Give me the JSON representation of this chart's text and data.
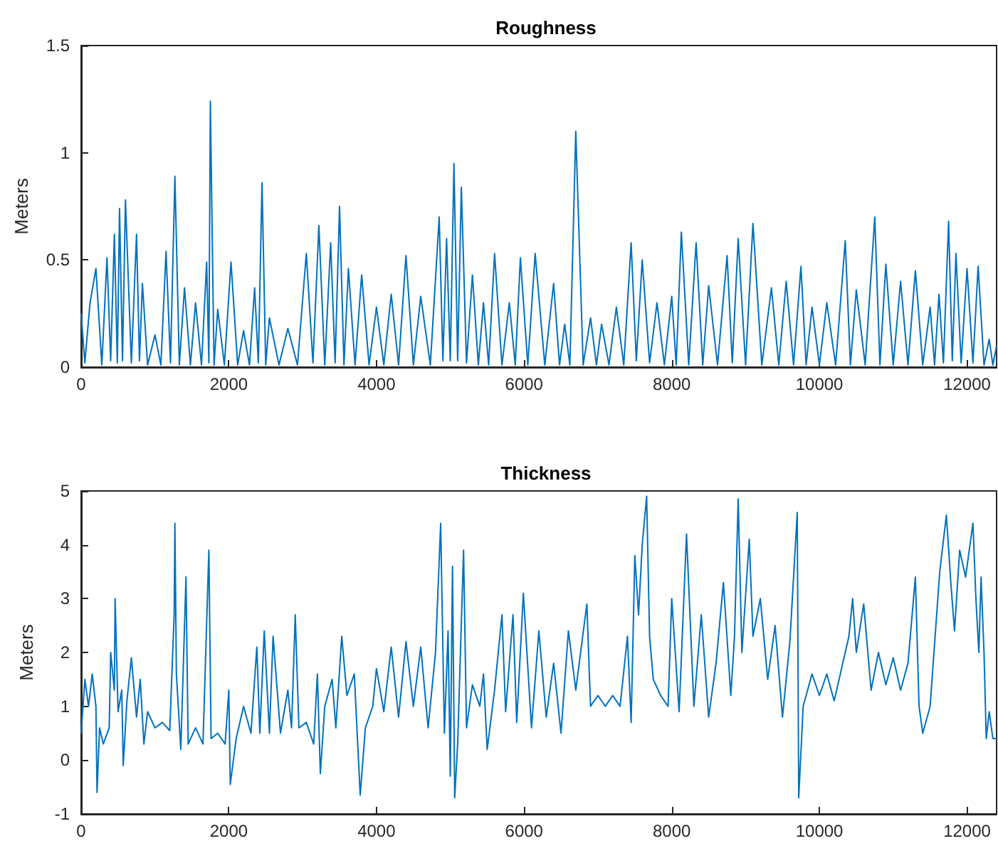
{
  "chart_data": [
    {
      "type": "line",
      "title": "Roughness",
      "ylabel": "Meters",
      "color": "#0072bd",
      "grid": false,
      "marker": "none",
      "line_style": "solid",
      "xlim": [
        0,
        12400
      ],
      "ylim": [
        0,
        1.5
      ],
      "xticks": [
        0,
        2000,
        4000,
        6000,
        8000,
        10000,
        12000
      ],
      "yticks": [
        0,
        0.5,
        1,
        1.5
      ],
      "x": [
        0,
        50,
        120,
        200,
        280,
        350,
        400,
        450,
        490,
        520,
        560,
        600,
        680,
        750,
        790,
        830,
        900,
        1000,
        1080,
        1150,
        1210,
        1270,
        1330,
        1400,
        1480,
        1550,
        1630,
        1700,
        1730,
        1750,
        1800,
        1850,
        1940,
        2030,
        2120,
        2200,
        2280,
        2350,
        2400,
        2450,
        2500,
        2550,
        2680,
        2800,
        2930,
        3050,
        3140,
        3220,
        3300,
        3380,
        3440,
        3500,
        3560,
        3620,
        3710,
        3800,
        3900,
        4000,
        4100,
        4200,
        4300,
        4400,
        4500,
        4600,
        4730,
        4850,
        4900,
        4950,
        5000,
        5050,
        5100,
        5150,
        5220,
        5300,
        5380,
        5450,
        5520,
        5600,
        5700,
        5800,
        5880,
        5950,
        6050,
        6150,
        6280,
        6400,
        6480,
        6550,
        6620,
        6700,
        6800,
        6900,
        6980,
        7050,
        7150,
        7250,
        7350,
        7450,
        7520,
        7600,
        7700,
        7800,
        7900,
        8000,
        8060,
        8130,
        8230,
        8330,
        8420,
        8500,
        8620,
        8750,
        8820,
        8900,
        9000,
        9100,
        9220,
        9350,
        9450,
        9550,
        9650,
        9750,
        9820,
        9900,
        10000,
        10100,
        10220,
        10350,
        10420,
        10500,
        10620,
        10750,
        10820,
        10900,
        11000,
        11100,
        11200,
        11300,
        11400,
        11500,
        11560,
        11620,
        11680,
        11750,
        11800,
        11850,
        11920,
        12000,
        12080,
        12150,
        12230,
        12300,
        12350,
        12400
      ],
      "values": [
        0.25,
        0.02,
        0.3,
        0.46,
        0.01,
        0.51,
        0.03,
        0.62,
        0.02,
        0.74,
        0.03,
        0.78,
        0.02,
        0.62,
        0.03,
        0.39,
        0.01,
        0.15,
        0.01,
        0.54,
        0.02,
        0.89,
        0.01,
        0.37,
        0.01,
        0.3,
        0.01,
        0.49,
        0.02,
        1.24,
        0.01,
        0.27,
        0.01,
        0.49,
        0.01,
        0.17,
        0.01,
        0.37,
        0.02,
        0.86,
        0.01,
        0.23,
        0.01,
        0.18,
        0.01,
        0.53,
        0.02,
        0.66,
        0.01,
        0.58,
        0.02,
        0.75,
        0.01,
        0.46,
        0.01,
        0.43,
        0.01,
        0.28,
        0.01,
        0.34,
        0.01,
        0.52,
        0.01,
        0.33,
        0.01,
        0.7,
        0.03,
        0.6,
        0.03,
        0.95,
        0.03,
        0.84,
        0.02,
        0.43,
        0.01,
        0.3,
        0.01,
        0.53,
        0.01,
        0.3,
        0.01,
        0.51,
        0.01,
        0.53,
        0.01,
        0.39,
        0.01,
        0.2,
        0.01,
        1.1,
        0.01,
        0.23,
        0.01,
        0.2,
        0.01,
        0.28,
        0.01,
        0.58,
        0.03,
        0.5,
        0.02,
        0.3,
        0.01,
        0.33,
        0.01,
        0.63,
        0.01,
        0.58,
        0.01,
        0.38,
        0.01,
        0.52,
        0.02,
        0.6,
        0.01,
        0.67,
        0.01,
        0.37,
        0.01,
        0.4,
        0.01,
        0.47,
        0.01,
        0.28,
        0.01,
        0.3,
        0.01,
        0.59,
        0.01,
        0.36,
        0.01,
        0.7,
        0.01,
        0.48,
        0.01,
        0.4,
        0.01,
        0.45,
        0.01,
        0.28,
        0.01,
        0.34,
        0.02,
        0.68,
        0.03,
        0.53,
        0.02,
        0.46,
        0.02,
        0.47,
        0.01,
        0.13,
        0.01,
        0.1
      ]
    },
    {
      "type": "line",
      "title": "Thickness",
      "ylabel": "Meters",
      "color": "#0072bd",
      "grid": false,
      "marker": "none",
      "line_style": "solid",
      "xlim": [
        0,
        12400
      ],
      "ylim": [
        -1,
        5
      ],
      "xticks": [
        0,
        2000,
        4000,
        6000,
        8000,
        10000,
        12000
      ],
      "yticks": [
        -1,
        0,
        1,
        2,
        3,
        4,
        5
      ],
      "x": [
        0,
        50,
        100,
        150,
        200,
        215,
        250,
        300,
        380,
        400,
        450,
        460,
        500,
        550,
        570,
        620,
        680,
        750,
        800,
        850,
        900,
        1000,
        1100,
        1200,
        1260,
        1270,
        1290,
        1350,
        1420,
        1450,
        1550,
        1650,
        1730,
        1760,
        1850,
        1950,
        2000,
        2020,
        2100,
        2200,
        2300,
        2380,
        2420,
        2480,
        2550,
        2600,
        2700,
        2800,
        2850,
        2900,
        2950,
        3050,
        3150,
        3200,
        3240,
        3300,
        3400,
        3450,
        3530,
        3600,
        3700,
        3780,
        3850,
        3950,
        4000,
        4100,
        4200,
        4300,
        4400,
        4500,
        4600,
        4700,
        4800,
        4870,
        4920,
        4970,
        5000,
        5030,
        5060,
        5100,
        5180,
        5220,
        5300,
        5400,
        5450,
        5500,
        5600,
        5700,
        5750,
        5850,
        5900,
        5990,
        6100,
        6200,
        6300,
        6400,
        6500,
        6600,
        6700,
        6850,
        6900,
        7000,
        7100,
        7200,
        7300,
        7400,
        7450,
        7500,
        7550,
        7600,
        7660,
        7700,
        7750,
        7850,
        7950,
        8000,
        8100,
        8200,
        8300,
        8400,
        8500,
        8600,
        8700,
        8800,
        8850,
        8900,
        8950,
        9050,
        9100,
        9200,
        9300,
        9400,
        9500,
        9600,
        9700,
        9720,
        9780,
        9900,
        10000,
        10100,
        10200,
        10300,
        10400,
        10450,
        10500,
        10600,
        10700,
        10800,
        10900,
        11000,
        11100,
        11200,
        11300,
        11350,
        11400,
        11500,
        11630,
        11720,
        11780,
        11830,
        11900,
        11980,
        12080,
        12120,
        12160,
        12190,
        12230,
        12260,
        12300,
        12350,
        12400
      ],
      "values": [
        0.5,
        1.5,
        1.0,
        1.6,
        1.0,
        -0.6,
        0.6,
        0.3,
        0.6,
        2.0,
        1.3,
        3.0,
        0.9,
        1.3,
        -0.1,
        1.1,
        1.9,
        0.8,
        1.5,
        0.3,
        0.9,
        0.6,
        0.7,
        0.55,
        2.7,
        4.4,
        1.6,
        0.2,
        3.4,
        0.3,
        0.6,
        0.3,
        3.9,
        0.4,
        0.5,
        0.3,
        1.3,
        -0.45,
        0.4,
        1.0,
        0.5,
        2.1,
        0.5,
        2.4,
        0.5,
        2.3,
        0.5,
        1.3,
        0.6,
        2.7,
        0.6,
        0.7,
        0.3,
        1.6,
        -0.25,
        1.0,
        1.5,
        0.6,
        2.3,
        1.2,
        1.6,
        -0.65,
        0.6,
        1.0,
        1.7,
        0.9,
        2.1,
        0.8,
        2.2,
        1.0,
        2.1,
        0.6,
        2.0,
        4.4,
        0.5,
        2.4,
        -0.3,
        3.6,
        -0.7,
        0.3,
        3.9,
        0.6,
        1.4,
        1.0,
        1.6,
        0.2,
        1.3,
        2.7,
        0.9,
        2.7,
        0.7,
        3.1,
        0.6,
        2.4,
        0.8,
        1.8,
        0.5,
        2.4,
        1.3,
        2.9,
        1.0,
        1.2,
        1.0,
        1.2,
        1.0,
        2.3,
        0.7,
        3.8,
        2.7,
        4.0,
        4.9,
        2.3,
        1.5,
        1.2,
        1.0,
        3.0,
        0.9,
        4.2,
        1.0,
        2.7,
        0.8,
        1.8,
        3.3,
        1.2,
        2.3,
        4.85,
        2.0,
        4.1,
        2.3,
        3.0,
        1.5,
        2.5,
        0.8,
        2.2,
        4.6,
        -0.7,
        1.0,
        1.6,
        1.2,
        1.6,
        1.1,
        1.7,
        2.3,
        3.0,
        2.0,
        2.9,
        1.3,
        2.0,
        1.4,
        1.9,
        1.3,
        1.8,
        3.4,
        1.0,
        0.5,
        1.0,
        3.5,
        4.55,
        3.3,
        2.4,
        3.9,
        3.4,
        4.4,
        3.0,
        2.0,
        3.4,
        2.0,
        0.4,
        0.9,
        0.4,
        0.4
      ]
    }
  ]
}
